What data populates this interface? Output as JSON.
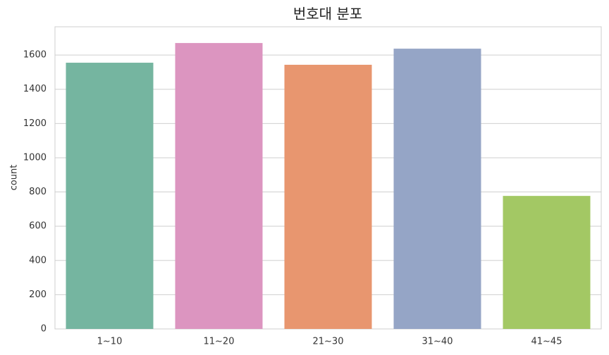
{
  "chart_data": {
    "type": "bar",
    "title": "번호대 분포",
    "y_label": "count",
    "categories": [
      "1~10",
      "11~20",
      "21~30",
      "31~40",
      "41~45"
    ],
    "values": [
      1555,
      1670,
      1543,
      1637,
      777
    ],
    "colors": [
      "#75b5a0",
      "#dc95c0",
      "#e8966f",
      "#95a5c6",
      "#a3c864"
    ],
    "ylim": [
      0,
      1765
    ],
    "yticks": [
      0,
      200,
      400,
      600,
      800,
      1000,
      1200,
      1400,
      1600
    ],
    "grid": true
  }
}
